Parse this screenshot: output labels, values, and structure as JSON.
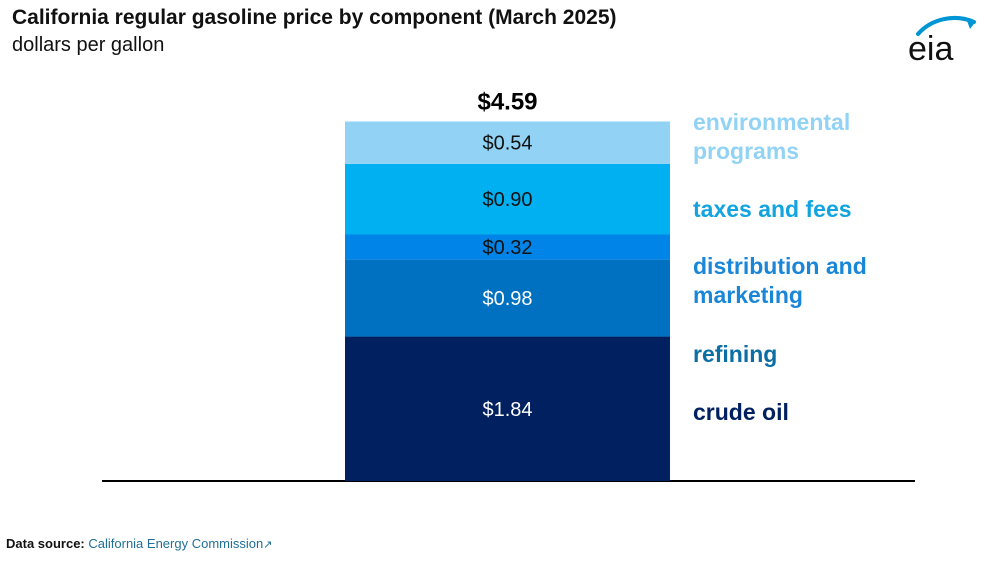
{
  "title": "California regular gasoline price by component (March 2025)",
  "subtitle": "dollars per gallon",
  "logo_text": "eia",
  "source": {
    "label": "Data source:",
    "link_text": "California Energy Commission"
  },
  "chart_data": {
    "type": "bar",
    "stacked": true,
    "title": "California regular gasoline price by component (March 2025)",
    "subtitle": "dollars per gallon",
    "total_label": "$4.59",
    "total": 4.59,
    "grid": false,
    "legend": "right of bar, inline labels",
    "series": [
      {
        "name": "crude oil",
        "value": 1.84,
        "label": "$1.84",
        "color": "#002060",
        "text_color": "#ffffff",
        "legend_lines": [
          "crude oil"
        ]
      },
      {
        "name": "refining",
        "value": 0.98,
        "label": "$0.98",
        "color": "#0070c0",
        "text_color": "#ffffff",
        "legend_lines": [
          "refining"
        ],
        "legend_color": "#0b6fa4"
      },
      {
        "name": "distribution and marketing",
        "value": 0.32,
        "label": "$0.32",
        "color": "#0184e8",
        "text_color": "#111111",
        "legend_lines": [
          "distribution and",
          "marketing"
        ],
        "legend_color": "#1a86d8"
      },
      {
        "name": "taxes and fees",
        "value": 0.9,
        "label": "$0.90",
        "color": "#00b0f0",
        "text_color": "#111111",
        "legend_lines": [
          "taxes and fees"
        ],
        "legend_color": "#13a4df"
      },
      {
        "name": "environmental programs",
        "value": 0.54,
        "label": "$0.54",
        "color": "#92d3f5",
        "text_color": "#111111",
        "legend_lines": [
          "environmental",
          "programs"
        ],
        "legend_color": "#92d3f5"
      }
    ]
  }
}
